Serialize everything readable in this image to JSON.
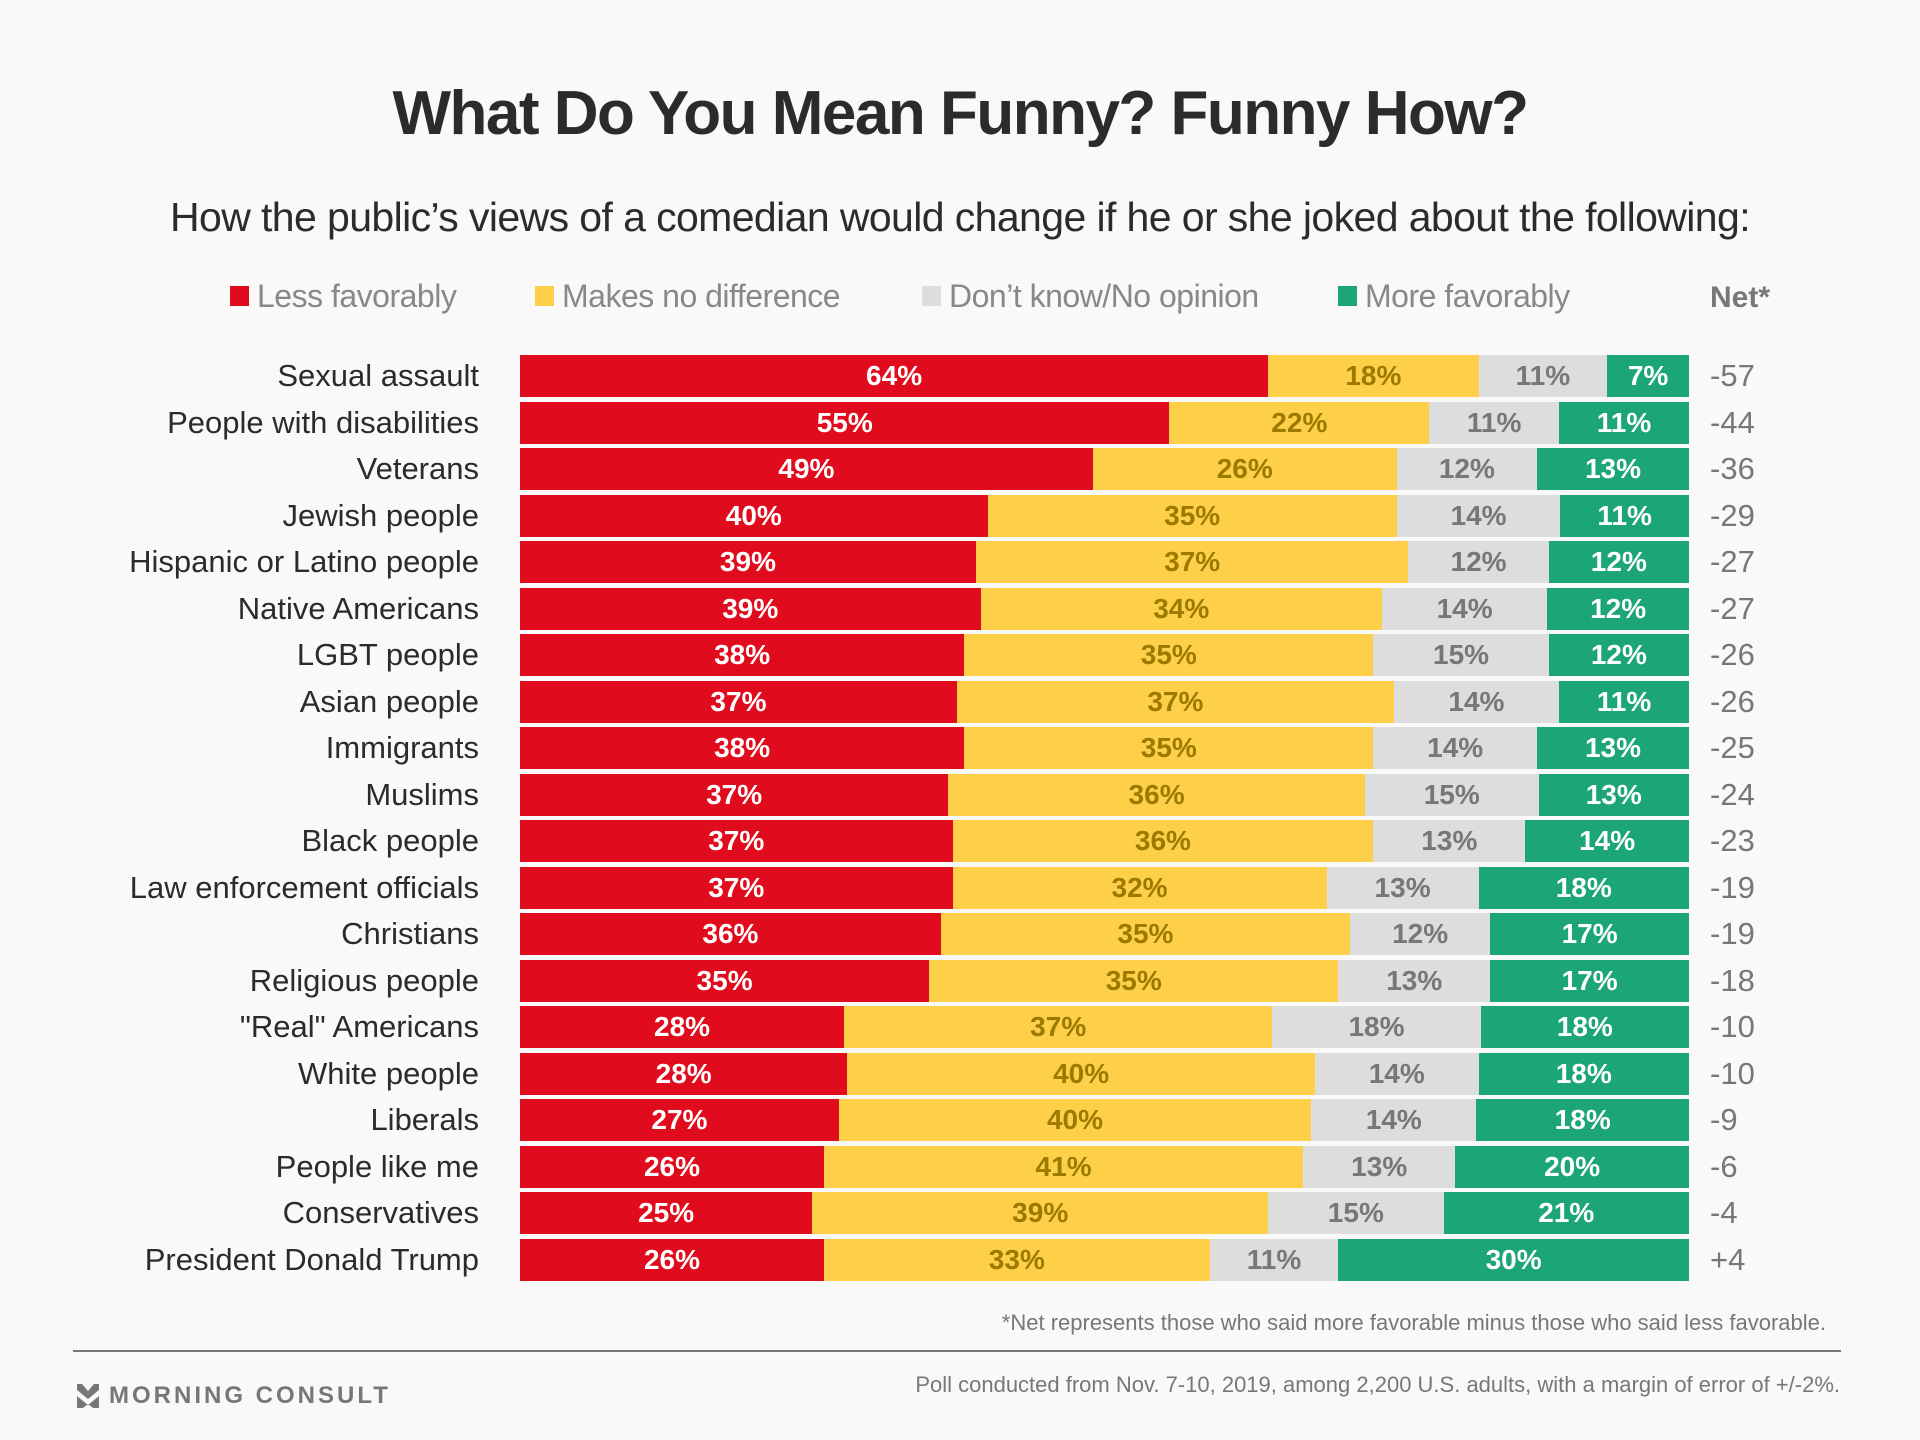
{
  "chart_data": {
    "type": "bar",
    "orientation": "horizontal",
    "stacked": true,
    "title": "What Do You Mean Funny? Funny How?",
    "subtitle": "How the public’s views of a comedian would change if he or she joked about the following:",
    "legend_position": "top",
    "net_header": "Net*",
    "series": [
      {
        "key": "less",
        "name": "Less favorably",
        "color": "#e00b1c"
      },
      {
        "key": "none",
        "name": "Makes no difference",
        "color": "#fed049"
      },
      {
        "key": "dk",
        "name": "Don’t know/No opinion",
        "color": "#dddddd"
      },
      {
        "key": "more",
        "name": "More favorably",
        "color": "#1ba579"
      }
    ],
    "categories": [
      "Sexual assault",
      "People with disabilities",
      "Veterans",
      "Jewish people",
      "Hispanic or Latino people",
      "Native Americans",
      "LGBT people",
      "Asian people",
      "Immigrants",
      "Muslims",
      "Black people",
      "Law enforcement officials",
      "Christians",
      "Religious people",
      "\"Real\" Americans",
      "White people",
      "Liberals",
      "People like me",
      "Conservatives",
      "President Donald Trump"
    ],
    "values": {
      "less": [
        64,
        55,
        49,
        40,
        39,
        39,
        38,
        37,
        38,
        37,
        37,
        37,
        36,
        35,
        28,
        28,
        27,
        26,
        25,
        26
      ],
      "none": [
        18,
        22,
        26,
        35,
        37,
        34,
        35,
        37,
        35,
        36,
        36,
        32,
        35,
        35,
        37,
        40,
        40,
        41,
        39,
        33
      ],
      "dk": [
        11,
        11,
        12,
        14,
        12,
        14,
        15,
        14,
        14,
        15,
        13,
        13,
        12,
        13,
        18,
        14,
        14,
        13,
        15,
        11
      ],
      "more": [
        7,
        11,
        13,
        11,
        12,
        12,
        12,
        11,
        13,
        13,
        14,
        18,
        17,
        17,
        18,
        18,
        18,
        20,
        21,
        30
      ]
    },
    "net": [
      "-57",
      "-44",
      "-36",
      "-29",
      "-27",
      "-27",
      "-26",
      "-26",
      "-25",
      "-24",
      "-23",
      "-19",
      "-19",
      "-18",
      "-10",
      "-10",
      "-9",
      "-6",
      "-4",
      "+4"
    ],
    "unit": "%"
  },
  "footer": {
    "note": "*Net represents those who said more favorable minus those who said less favorable.",
    "brand": "MORNING CONSULT",
    "source": "Poll conducted from Nov. 7-10, 2019, among 2,200 U.S. adults, with a margin of error of +/-2%."
  }
}
